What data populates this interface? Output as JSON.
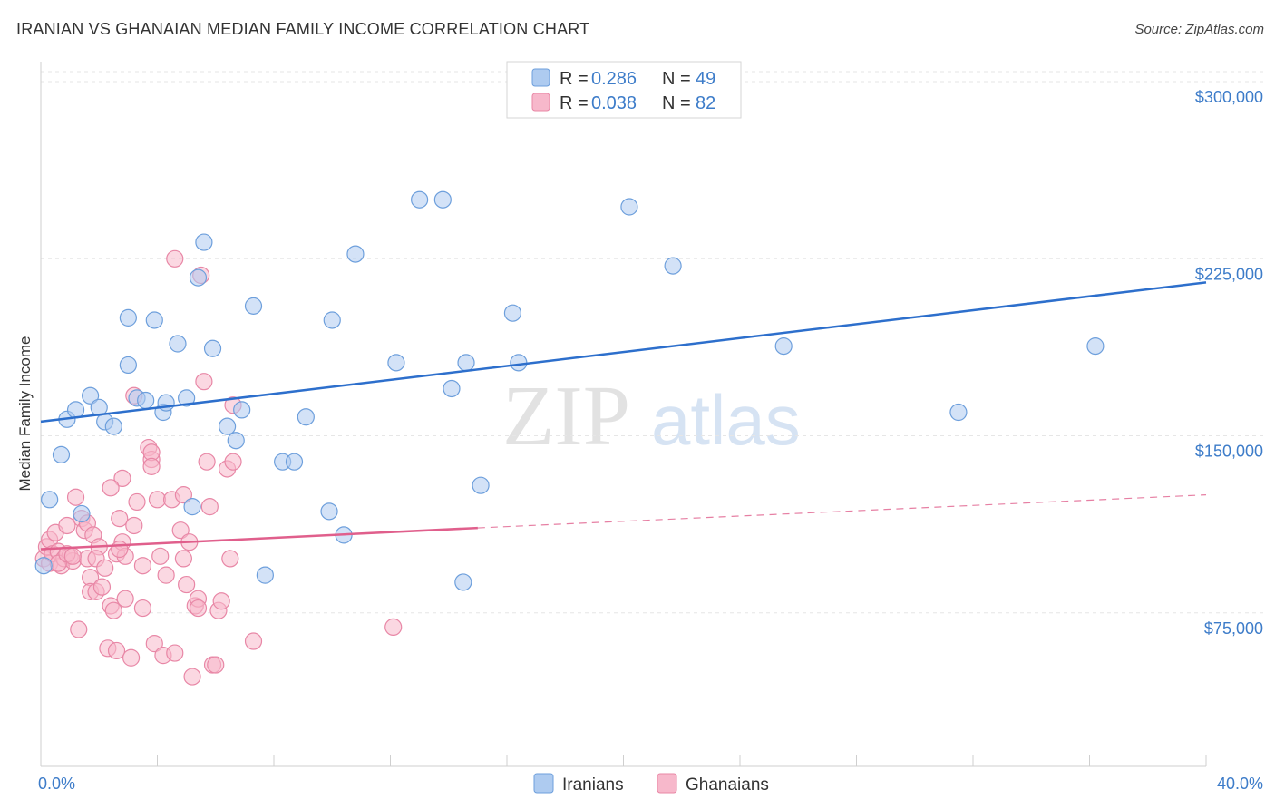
{
  "header": {
    "title": "IRANIAN VS GHANAIAN MEDIAN FAMILY INCOME CORRELATION CHART",
    "source": "Source: ZipAtlas.com"
  },
  "watermark": {
    "zip": "ZIP",
    "atlas": "atlas"
  },
  "colors": {
    "iranians_fill": "#aecbf0",
    "iranians_stroke": "#6d9fdc",
    "iranians_line": "#2d6fcc",
    "ghanaians_fill": "#f7b8cb",
    "ghanaians_stroke": "#e887a6",
    "ghanaians_line": "#e05f8c",
    "axis_label": "#3d7cc9"
  },
  "legend": {
    "iranians": {
      "r_label": "R = ",
      "r_value": "0.286",
      "n_label": "N = ",
      "n_value": "49"
    },
    "ghanaians": {
      "r_label": "R = ",
      "r_value": "0.038",
      "n_label": "N = ",
      "n_value": "82"
    }
  },
  "chart_data": {
    "type": "scatter",
    "title": "IRANIAN VS GHANAIAN MEDIAN FAMILY INCOME CORRELATION CHART",
    "ylabel": "Median Family Income",
    "xlabel": "",
    "xlim": [
      0,
      40
    ],
    "ylim": [
      10000,
      315000
    ],
    "x_tick_labels": [
      "0.0%",
      "40.0%"
    ],
    "y_ticks": [
      {
        "value": 75000,
        "label": "$75,000"
      },
      {
        "value": 150000,
        "label": "$150,000"
      },
      {
        "value": 225000,
        "label": "$225,000"
      },
      {
        "value": 300000,
        "label": "$300,000"
      }
    ],
    "legend_position": "top-center",
    "series": [
      {
        "name": "Iranians",
        "trend": {
          "x0": 0,
          "y0": 156000,
          "x1": 40,
          "y1": 215000
        },
        "points": [
          [
            0.1,
            95000
          ],
          [
            0.3,
            123000
          ],
          [
            0.7,
            142000
          ],
          [
            0.9,
            157000
          ],
          [
            1.2,
            161000
          ],
          [
            1.4,
            117000
          ],
          [
            1.7,
            167000
          ],
          [
            2.0,
            162000
          ],
          [
            2.2,
            156000
          ],
          [
            2.5,
            154000
          ],
          [
            3.0,
            180000
          ],
          [
            3.0,
            200000
          ],
          [
            3.3,
            166000
          ],
          [
            3.6,
            165000
          ],
          [
            3.9,
            199000
          ],
          [
            4.2,
            160000
          ],
          [
            4.3,
            164000
          ],
          [
            4.7,
            189000
          ],
          [
            5.0,
            166000
          ],
          [
            5.2,
            120000
          ],
          [
            5.4,
            217000
          ],
          [
            5.6,
            232000
          ],
          [
            5.9,
            187000
          ],
          [
            6.4,
            154000
          ],
          [
            6.7,
            148000
          ],
          [
            6.9,
            161000
          ],
          [
            7.3,
            205000
          ],
          [
            7.7,
            91000
          ],
          [
            8.3,
            139000
          ],
          [
            8.7,
            139000
          ],
          [
            9.1,
            158000
          ],
          [
            9.9,
            118000
          ],
          [
            10.0,
            199000
          ],
          [
            10.4,
            108000
          ],
          [
            10.8,
            227000
          ],
          [
            12.2,
            181000
          ],
          [
            13.0,
            250000
          ],
          [
            13.8,
            250000
          ],
          [
            14.1,
            170000
          ],
          [
            14.5,
            88000
          ],
          [
            14.6,
            181000
          ],
          [
            15.1,
            129000
          ],
          [
            16.2,
            202000
          ],
          [
            16.4,
            181000
          ],
          [
            20.2,
            247000
          ],
          [
            21.7,
            222000
          ],
          [
            25.5,
            188000
          ],
          [
            31.5,
            160000
          ],
          [
            36.2,
            188000
          ]
        ]
      },
      {
        "name": "Ghanaians",
        "trend_solid": {
          "x0": 0,
          "y0": 102000,
          "x1": 15,
          "y1": 111000
        },
        "trend_dashed": {
          "x0": 15,
          "y0": 111000,
          "x1": 40,
          "y1": 125000
        },
        "points": [
          [
            0.1,
            98000
          ],
          [
            0.2,
            103000
          ],
          [
            0.3,
            106000
          ],
          [
            0.3,
            96000
          ],
          [
            0.4,
            100000
          ],
          [
            0.5,
            109000
          ],
          [
            0.6,
            101000
          ],
          [
            0.7,
            95000
          ],
          [
            0.8,
            98000
          ],
          [
            0.9,
            112000
          ],
          [
            1.0,
            99000
          ],
          [
            1.1,
            97000
          ],
          [
            1.2,
            124000
          ],
          [
            1.3,
            68000
          ],
          [
            1.4,
            115000
          ],
          [
            1.5,
            110000
          ],
          [
            1.6,
            113000
          ],
          [
            1.6,
            98000
          ],
          [
            1.7,
            90000
          ],
          [
            1.7,
            84000
          ],
          [
            1.8,
            108000
          ],
          [
            1.9,
            84000
          ],
          [
            2.0,
            103000
          ],
          [
            1.9,
            98000
          ],
          [
            2.1,
            86000
          ],
          [
            2.2,
            94000
          ],
          [
            2.3,
            60000
          ],
          [
            2.4,
            78000
          ],
          [
            2.5,
            76000
          ],
          [
            2.6,
            59000
          ],
          [
            2.6,
            100000
          ],
          [
            2.7,
            115000
          ],
          [
            2.8,
            105000
          ],
          [
            2.9,
            81000
          ],
          [
            2.9,
            99000
          ],
          [
            3.1,
            56000
          ],
          [
            3.2,
            112000
          ],
          [
            3.3,
            122000
          ],
          [
            3.5,
            95000
          ],
          [
            3.5,
            77000
          ],
          [
            3.7,
            145000
          ],
          [
            3.8,
            140000
          ],
          [
            3.9,
            62000
          ],
          [
            4.0,
            123000
          ],
          [
            4.1,
            99000
          ],
          [
            4.2,
            57000
          ],
          [
            4.3,
            91000
          ],
          [
            4.5,
            123000
          ],
          [
            4.6,
            58000
          ],
          [
            4.6,
            225000
          ],
          [
            4.8,
            110000
          ],
          [
            4.9,
            125000
          ],
          [
            5.0,
            87000
          ],
          [
            5.1,
            105000
          ],
          [
            5.2,
            48000
          ],
          [
            5.3,
            78000
          ],
          [
            5.4,
            81000
          ],
          [
            5.5,
            218000
          ],
          [
            5.6,
            173000
          ],
          [
            5.7,
            139000
          ],
          [
            5.8,
            120000
          ],
          [
            5.9,
            53000
          ],
          [
            6.0,
            53000
          ],
          [
            6.1,
            76000
          ],
          [
            6.2,
            80000
          ],
          [
            6.4,
            136000
          ],
          [
            6.5,
            98000
          ],
          [
            6.6,
            139000
          ],
          [
            6.6,
            163000
          ],
          [
            3.8,
            143000
          ],
          [
            3.2,
            167000
          ],
          [
            2.8,
            132000
          ],
          [
            3.8,
            137000
          ],
          [
            4.9,
            98000
          ],
          [
            2.4,
            128000
          ],
          [
            7.3,
            63000
          ],
          [
            12.1,
            69000
          ],
          [
            0.6,
            96000
          ],
          [
            0.9,
            100000
          ],
          [
            1.1,
            99000
          ],
          [
            2.7,
            102000
          ],
          [
            5.4,
            77000
          ]
        ]
      }
    ]
  },
  "bottom_legend": {
    "iranians_label": "Iranians",
    "ghanaians_label": "Ghanaians"
  }
}
